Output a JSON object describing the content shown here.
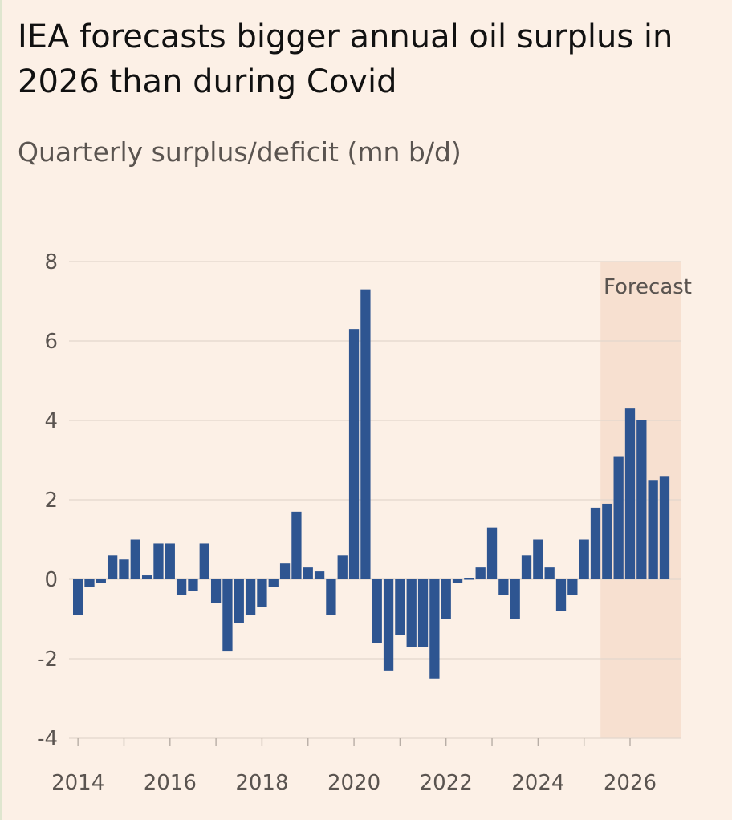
{
  "title": "IEA forecasts bigger annual oil surplus in 2026 than during Covid",
  "subtitle": "Quarterly surplus/deficit (mn b/d)",
  "colors": {
    "background": "#fcf0e6",
    "bar": "#2e5591",
    "forecast_band": "#f7e0d0",
    "grid": "#e3d7cc",
    "text": "#111111",
    "muted_text": "#5a5450"
  },
  "chart_data": {
    "type": "bar",
    "title": "IEA forecasts bigger annual oil surplus in 2026 than during Covid",
    "subtitle": "Quarterly surplus/deficit (mn b/d)",
    "xlabel": "",
    "ylabel": "",
    "ylim": [
      -4,
      8
    ],
    "yticks": [
      8,
      6,
      4,
      2,
      0,
      -2,
      -4
    ],
    "ytick_labels": [
      "8",
      "6",
      "4",
      "2",
      "0",
      "-2",
      "-4"
    ],
    "xtick_labels": [
      "2014",
      "2016",
      "2018",
      "2020",
      "2022",
      "2024",
      "2026"
    ],
    "grid": true,
    "forecast_label": "Forecast",
    "forecast_start": "2025 Q3",
    "categories": [
      "2014 Q1",
      "2014 Q2",
      "2014 Q3",
      "2014 Q4",
      "2015 Q1",
      "2015 Q2",
      "2015 Q3",
      "2015 Q4",
      "2016 Q1",
      "2016 Q2",
      "2016 Q3",
      "2016 Q4",
      "2017 Q1",
      "2017 Q2",
      "2017 Q3",
      "2017 Q4",
      "2018 Q1",
      "2018 Q2",
      "2018 Q3",
      "2018 Q4",
      "2019 Q1",
      "2019 Q2",
      "2019 Q3",
      "2019 Q4",
      "2020 Q1",
      "2020 Q2",
      "2020 Q3",
      "2020 Q4",
      "2021 Q1",
      "2021 Q2",
      "2021 Q3",
      "2021 Q4",
      "2022 Q1",
      "2022 Q2",
      "2022 Q3",
      "2022 Q4",
      "2023 Q1",
      "2023 Q2",
      "2023 Q3",
      "2023 Q4",
      "2024 Q1",
      "2024 Q2",
      "2024 Q3",
      "2024 Q4",
      "2025 Q1",
      "2025 Q2",
      "2025 Q3",
      "2025 Q4",
      "2026 Q1",
      "2026 Q2",
      "2026 Q3",
      "2026 Q4"
    ],
    "values": [
      -0.9,
      -0.2,
      -0.1,
      0.6,
      0.5,
      1.0,
      0.1,
      0.9,
      0.9,
      -0.4,
      -0.3,
      0.9,
      -0.6,
      -1.8,
      -1.1,
      -0.9,
      -0.7,
      -0.2,
      0.4,
      1.7,
      0.3,
      0.2,
      -0.9,
      0.6,
      6.3,
      7.3,
      -1.6,
      -2.3,
      -1.4,
      -1.7,
      -1.7,
      -2.5,
      -1.0,
      -0.1,
      0.0,
      0.3,
      1.3,
      -0.4,
      -1.0,
      0.6,
      1.0,
      0.3,
      -0.8,
      -0.4,
      1.0,
      1.8,
      1.9,
      3.1,
      4.3,
      4.0,
      2.5,
      2.6
    ]
  }
}
